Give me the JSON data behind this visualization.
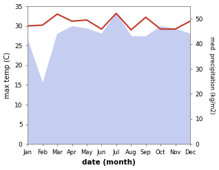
{
  "months": [
    "Jan",
    "Feb",
    "Mar",
    "Apr",
    "May",
    "Jun",
    "Jul",
    "Aug",
    "Sep",
    "Oct",
    "Nov",
    "Dec"
  ],
  "temperature": [
    30.0,
    30.2,
    33.0,
    31.2,
    31.5,
    29.2,
    33.2,
    29.0,
    32.2,
    29.2,
    29.2,
    31.2
  ],
  "precipitation": [
    41,
    24,
    44,
    47,
    46,
    44,
    52,
    43,
    43,
    47,
    46,
    44
  ],
  "temp_color": "#c0392b",
  "precip_fill_color": "#c5cdf0",
  "precip_line_color": "#aab4e8",
  "ylabel_left": "max temp (C)",
  "ylabel_right": "med. precipitation (kg/m2)",
  "xlabel": "date (month)",
  "ylim_left": [
    0,
    35
  ],
  "ylim_right": [
    0,
    55
  ],
  "yticks_left": [
    0,
    5,
    10,
    15,
    20,
    25,
    30,
    35
  ],
  "yticks_right": [
    0,
    10,
    20,
    30,
    40,
    50
  ],
  "background_color": "#ffffff"
}
